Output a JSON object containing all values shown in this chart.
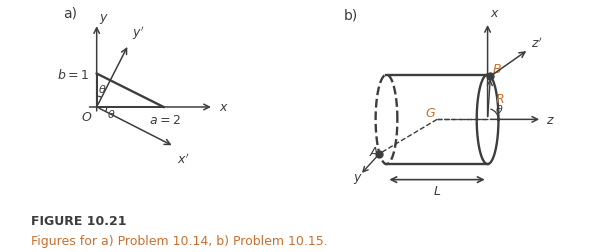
{
  "fig_width": 6.12,
  "fig_height": 2.53,
  "dpi": 100,
  "bg_color": "#ffffff",
  "dark": "#3d3d3d",
  "orange": "#c87030",
  "title": "FIGURE 10.21",
  "subtitle": "Figures for a) Problem 10.14, b) Problem 10.15."
}
